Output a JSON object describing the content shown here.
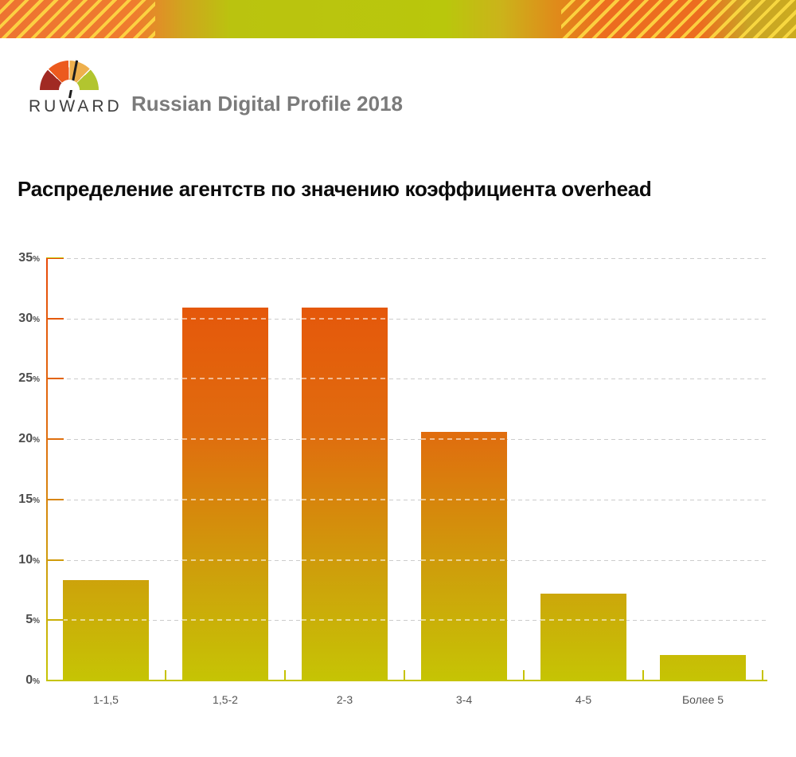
{
  "header": {
    "brand": "RUWARD",
    "subtitle": "Russian Digital Profile 2018"
  },
  "chart_data": {
    "type": "bar",
    "title": "Распределение агентств по значению коэффициента overhead",
    "categories": [
      "1-1,5",
      "1,5-2",
      "2-3",
      "3-4",
      "4-5",
      "Более 5"
    ],
    "values": [
      8.3,
      30.9,
      30.9,
      20.6,
      7.2,
      2.1
    ],
    "xlabel": "",
    "ylabel": "",
    "ylim": [
      0,
      35
    ],
    "ytick_step": 5,
    "ytick_suffix": "%",
    "grid": "horizontal-dashed",
    "legend": "none",
    "bar_gradient_stops": [
      {
        "pos": 0.0,
        "color": "#e8490a"
      },
      {
        "pos": 0.12,
        "color": "#e5580b"
      },
      {
        "pos": 0.41,
        "color": "#e06c0e"
      },
      {
        "pos": 0.76,
        "color": "#cda20b"
      },
      {
        "pos": 1.0,
        "color": "#c6c404"
      }
    ]
  },
  "colors": {
    "baseline": "#c6c404",
    "grid": "#cccccc",
    "axis-label": "#4d4d4d",
    "title": "#0b0b0b",
    "subtitle-gray": "#7b7b7b",
    "brand-text": "#3e3e3e",
    "gauge-red": "#a12a23",
    "gauge-orange": "#ec5a1e",
    "gauge-amber": "#eeb04d",
    "gauge-green": "#b2c52f",
    "banner-orange": "#ed7331",
    "banner-yellow-green": "#b9c70c",
    "banner-gold": "#cbb31a",
    "banner-stripe": "#ffdf45"
  }
}
